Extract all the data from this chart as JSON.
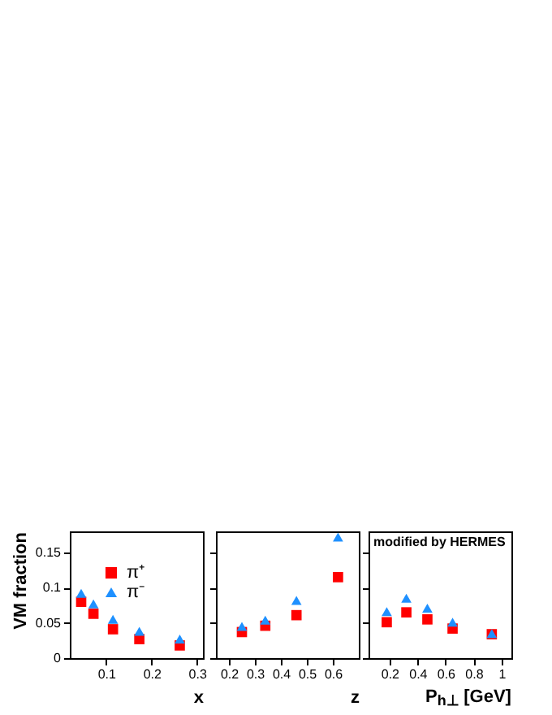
{
  "chart_data": [
    {
      "type": "scatter",
      "xlabel": "x",
      "ylabel": "VM fraction",
      "xlim": [
        0.02,
        0.313
      ],
      "xticks": [
        0.1,
        0.2,
        0.3
      ],
      "ylim": [
        0,
        0.18
      ],
      "yticks": [
        0,
        0.05,
        0.1,
        0.15
      ],
      "grid": false,
      "legend": "top left",
      "x": [
        0.045,
        0.072,
        0.115,
        0.173,
        0.262
      ],
      "series": [
        {
          "name": "π⁺",
          "color": "#ff0000",
          "marker": "square",
          "values": [
            0.08,
            0.063,
            0.041,
            0.027,
            0.018
          ]
        },
        {
          "name": "π⁻",
          "color": "#1e90ff",
          "marker": "triangle",
          "values": [
            0.092,
            0.077,
            0.055,
            0.038,
            0.027
          ]
        }
      ]
    },
    {
      "type": "scatter",
      "xlabel": "z",
      "xlim": [
        0.15,
        0.7
      ],
      "xticks": [
        0.2,
        0.3,
        0.4,
        0.5,
        0.6
      ],
      "ylim": [
        0,
        0.18
      ],
      "yticks": [
        0,
        0.05,
        0.1,
        0.15
      ],
      "grid": false,
      "tick_labels": "x",
      "x": [
        0.25,
        0.34,
        0.46,
        0.62
      ],
      "series": [
        {
          "color": "#ff0000",
          "marker": "square",
          "values": [
            0.037,
            0.046,
            0.061,
            0.115
          ]
        },
        {
          "color": "#1e90ff",
          "marker": "triangle",
          "values": [
            0.045,
            0.054,
            0.082,
            0.172
          ]
        }
      ]
    },
    {
      "type": "scatter",
      "xlabel": "P$_{h⊥}$ [GeV]",
      "xlim": [
        0.05,
        1.07
      ],
      "xticks": [
        0.2,
        0.4,
        0.6,
        0.8,
        1
      ],
      "ylim": [
        0,
        0.18
      ],
      "yticks": [
        0,
        0.05,
        0.1,
        0.15
      ],
      "grid": false,
      "tick_labels": "x",
      "annotations": [
        "modified by HERMES"
      ],
      "x": [
        0.18,
        0.32,
        0.47,
        0.65,
        0.93
      ],
      "series": [
        {
          "color": "#ff0000",
          "marker": "square",
          "values": [
            0.051,
            0.065,
            0.055,
            0.042,
            0.034
          ]
        },
        {
          "color": "#1e90ff",
          "marker": "triangle",
          "values": [
            0.066,
            0.085,
            0.071,
            0.051,
            0.035
          ]
        }
      ]
    }
  ]
}
